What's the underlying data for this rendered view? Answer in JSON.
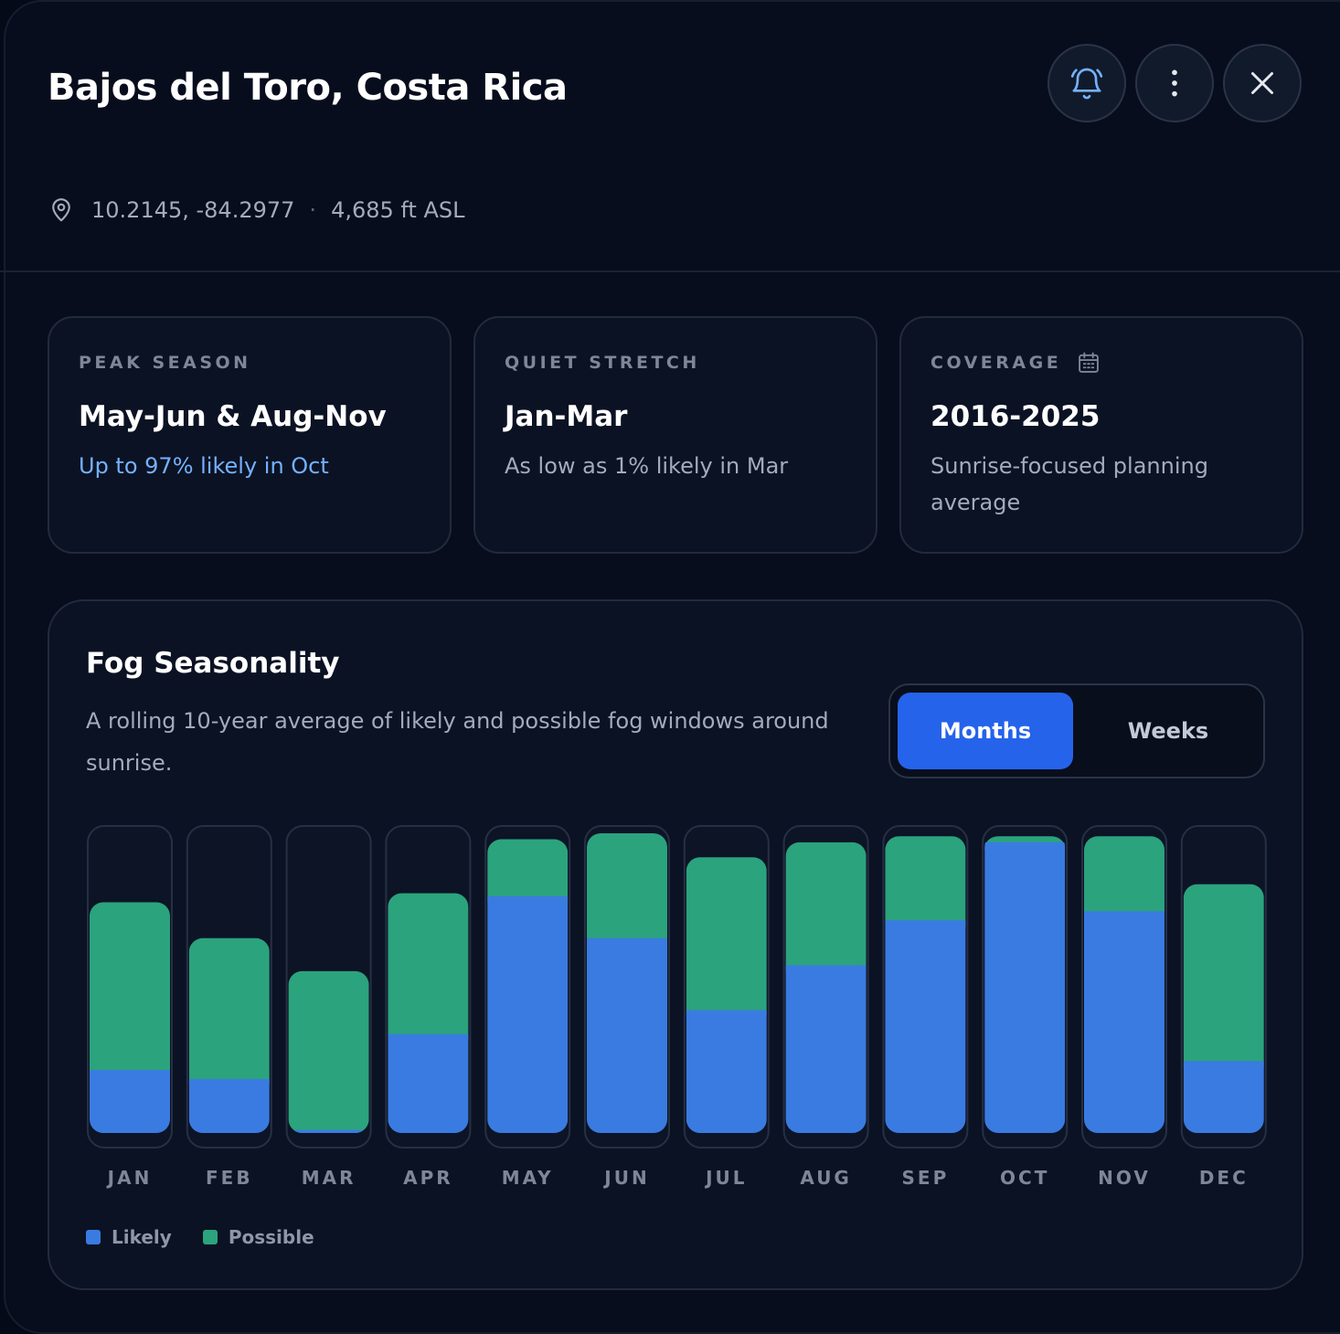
{
  "header": {
    "title": "Bajos del Toro, Costa Rica",
    "coords": "10.2145, -84.2977",
    "separator": "·",
    "elevation": "4,685 ft ASL",
    "icons": [
      "bell-icon",
      "more-vertical-icon",
      "close-icon"
    ]
  },
  "stats": [
    {
      "label": "PEAK SEASON",
      "value": "May-Jun & Aug-Nov",
      "sub": "Up to 97% likely in Oct"
    },
    {
      "label": "QUIET STRETCH",
      "value": "Jan-Mar",
      "sub": "As low as 1% likely in Mar"
    },
    {
      "label": "COVERAGE",
      "value": "2016-2025",
      "sub": "Sunrise-focused planning average"
    }
  ],
  "chart": {
    "title": "Fog Seasonality",
    "description": "A rolling 10-year average of likely and possible fog windows around sunrise.",
    "toggle": {
      "months": "Months",
      "weeks": "Weeks",
      "selected": "Months"
    }
  },
  "chart_data": {
    "type": "bar",
    "stacked": true,
    "categories": [
      "JAN",
      "FEB",
      "MAR",
      "APR",
      "MAY",
      "JUN",
      "JUL",
      "AUG",
      "SEP",
      "OCT",
      "NOV",
      "DEC"
    ],
    "series": [
      {
        "name": "Likely",
        "color": "#3a7be1",
        "values": [
          21,
          18,
          1,
          33,
          79,
          65,
          41,
          56,
          71,
          97,
          74,
          24
        ]
      },
      {
        "name": "Possible",
        "color": "#2ba37d",
        "values": [
          56,
          47,
          53,
          47,
          19,
          35,
          51,
          41,
          28,
          2,
          25,
          59
        ]
      }
    ],
    "ylim": [
      0,
      100
    ],
    "legend": "bottom-left",
    "grid": false
  }
}
